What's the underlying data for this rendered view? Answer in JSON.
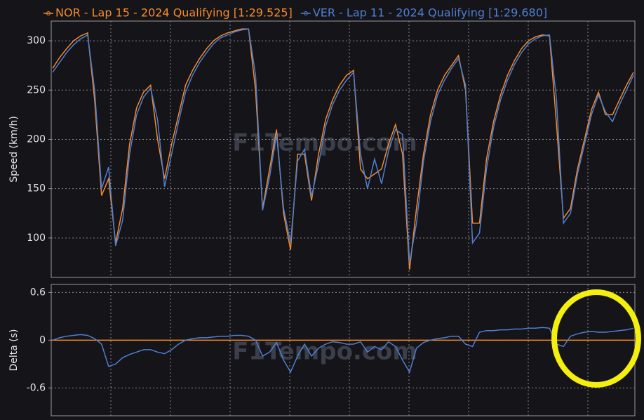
{
  "chart_data": [
    {
      "type": "line",
      "ylabel": "Speed (km/h)",
      "watermark": "F1Tempo.com",
      "ylim": [
        60,
        320
      ],
      "yticks": [
        100,
        150,
        200,
        250,
        300
      ],
      "grid": true,
      "series": [
        {
          "name": "NOR - Lap 15 - 2024 Qualifying [1:29.525]",
          "color": "#f58a2a",
          "values": [
            272,
            283,
            292,
            300,
            305,
            308,
            240,
            143,
            160,
            95,
            130,
            195,
            232,
            248,
            255,
            200,
            160,
            195,
            225,
            255,
            270,
            282,
            292,
            300,
            305,
            308,
            310,
            312,
            312,
            250,
            130,
            170,
            210,
            125,
            88,
            185,
            185,
            138,
            185,
            220,
            240,
            255,
            265,
            270,
            170,
            160,
            165,
            170,
            195,
            215,
            185,
            68,
            130,
            185,
            225,
            250,
            265,
            275,
            285,
            250,
            115,
            115,
            180,
            218,
            245,
            265,
            280,
            292,
            300,
            304,
            306,
            305,
            215,
            120,
            130,
            170,
            200,
            230,
            248,
            225,
            225,
            240,
            255,
            268
          ]
        },
        {
          "name": "VER - Lap 11 - 2024 Qualifying [1:29.680]",
          "color": "#4f7fd0",
          "values": [
            268,
            278,
            288,
            296,
            302,
            306,
            250,
            150,
            172,
            92,
            118,
            185,
            225,
            243,
            252,
            220,
            152,
            185,
            218,
            248,
            265,
            278,
            288,
            297,
            303,
            306,
            309,
            311,
            312,
            265,
            128,
            162,
            205,
            130,
            95,
            178,
            190,
            142,
            175,
            213,
            235,
            250,
            260,
            268,
            185,
            150,
            180,
            155,
            188,
            210,
            205,
            75,
            115,
            178,
            218,
            245,
            260,
            272,
            282,
            255,
            95,
            105,
            170,
            212,
            240,
            260,
            276,
            288,
            297,
            302,
            305,
            306,
            240,
            115,
            125,
            165,
            195,
            225,
            245,
            228,
            218,
            235,
            250,
            265
          ]
        }
      ]
    },
    {
      "type": "line",
      "ylabel": "Delta (s)",
      "watermark": "F1Tempo.com",
      "ylim": [
        -0.95,
        0.7
      ],
      "yticks": [
        0.6,
        0,
        -0.6
      ],
      "grid": true,
      "baseline_color": "#f58a2a",
      "series": [
        {
          "color": "#4f7fd0",
          "values": [
            0,
            0.03,
            0.05,
            0.06,
            0.07,
            0.06,
            0.02,
            -0.05,
            -0.33,
            -0.3,
            -0.22,
            -0.18,
            -0.15,
            -0.12,
            -0.12,
            -0.15,
            -0.17,
            -0.12,
            -0.05,
            0,
            0.02,
            0.03,
            0.03,
            0.04,
            0.05,
            0.05,
            0.06,
            0.06,
            0.05,
            0,
            -0.2,
            -0.15,
            -0.03,
            -0.25,
            -0.4,
            -0.2,
            -0.05,
            -0.2,
            -0.1,
            -0.05,
            -0.02,
            -0.03,
            -0.05,
            -0.05,
            -0.02,
            -0.15,
            -0.08,
            -0.12,
            -0.02,
            -0.08,
            -0.25,
            -0.4,
            -0.1,
            -0.03,
            0,
            0.02,
            0.03,
            0.05,
            0.05,
            -0.05,
            -0.08,
            0.1,
            0.12,
            0.12,
            0.13,
            0.13,
            0.14,
            0.14,
            0.15,
            0.15,
            0.16,
            0.15,
            -0.05,
            -0.08,
            0.05,
            0.08,
            0.1,
            0.11,
            0.1,
            0.1,
            0.11,
            0.12,
            0.13,
            0.15
          ]
        }
      ]
    }
  ]
}
